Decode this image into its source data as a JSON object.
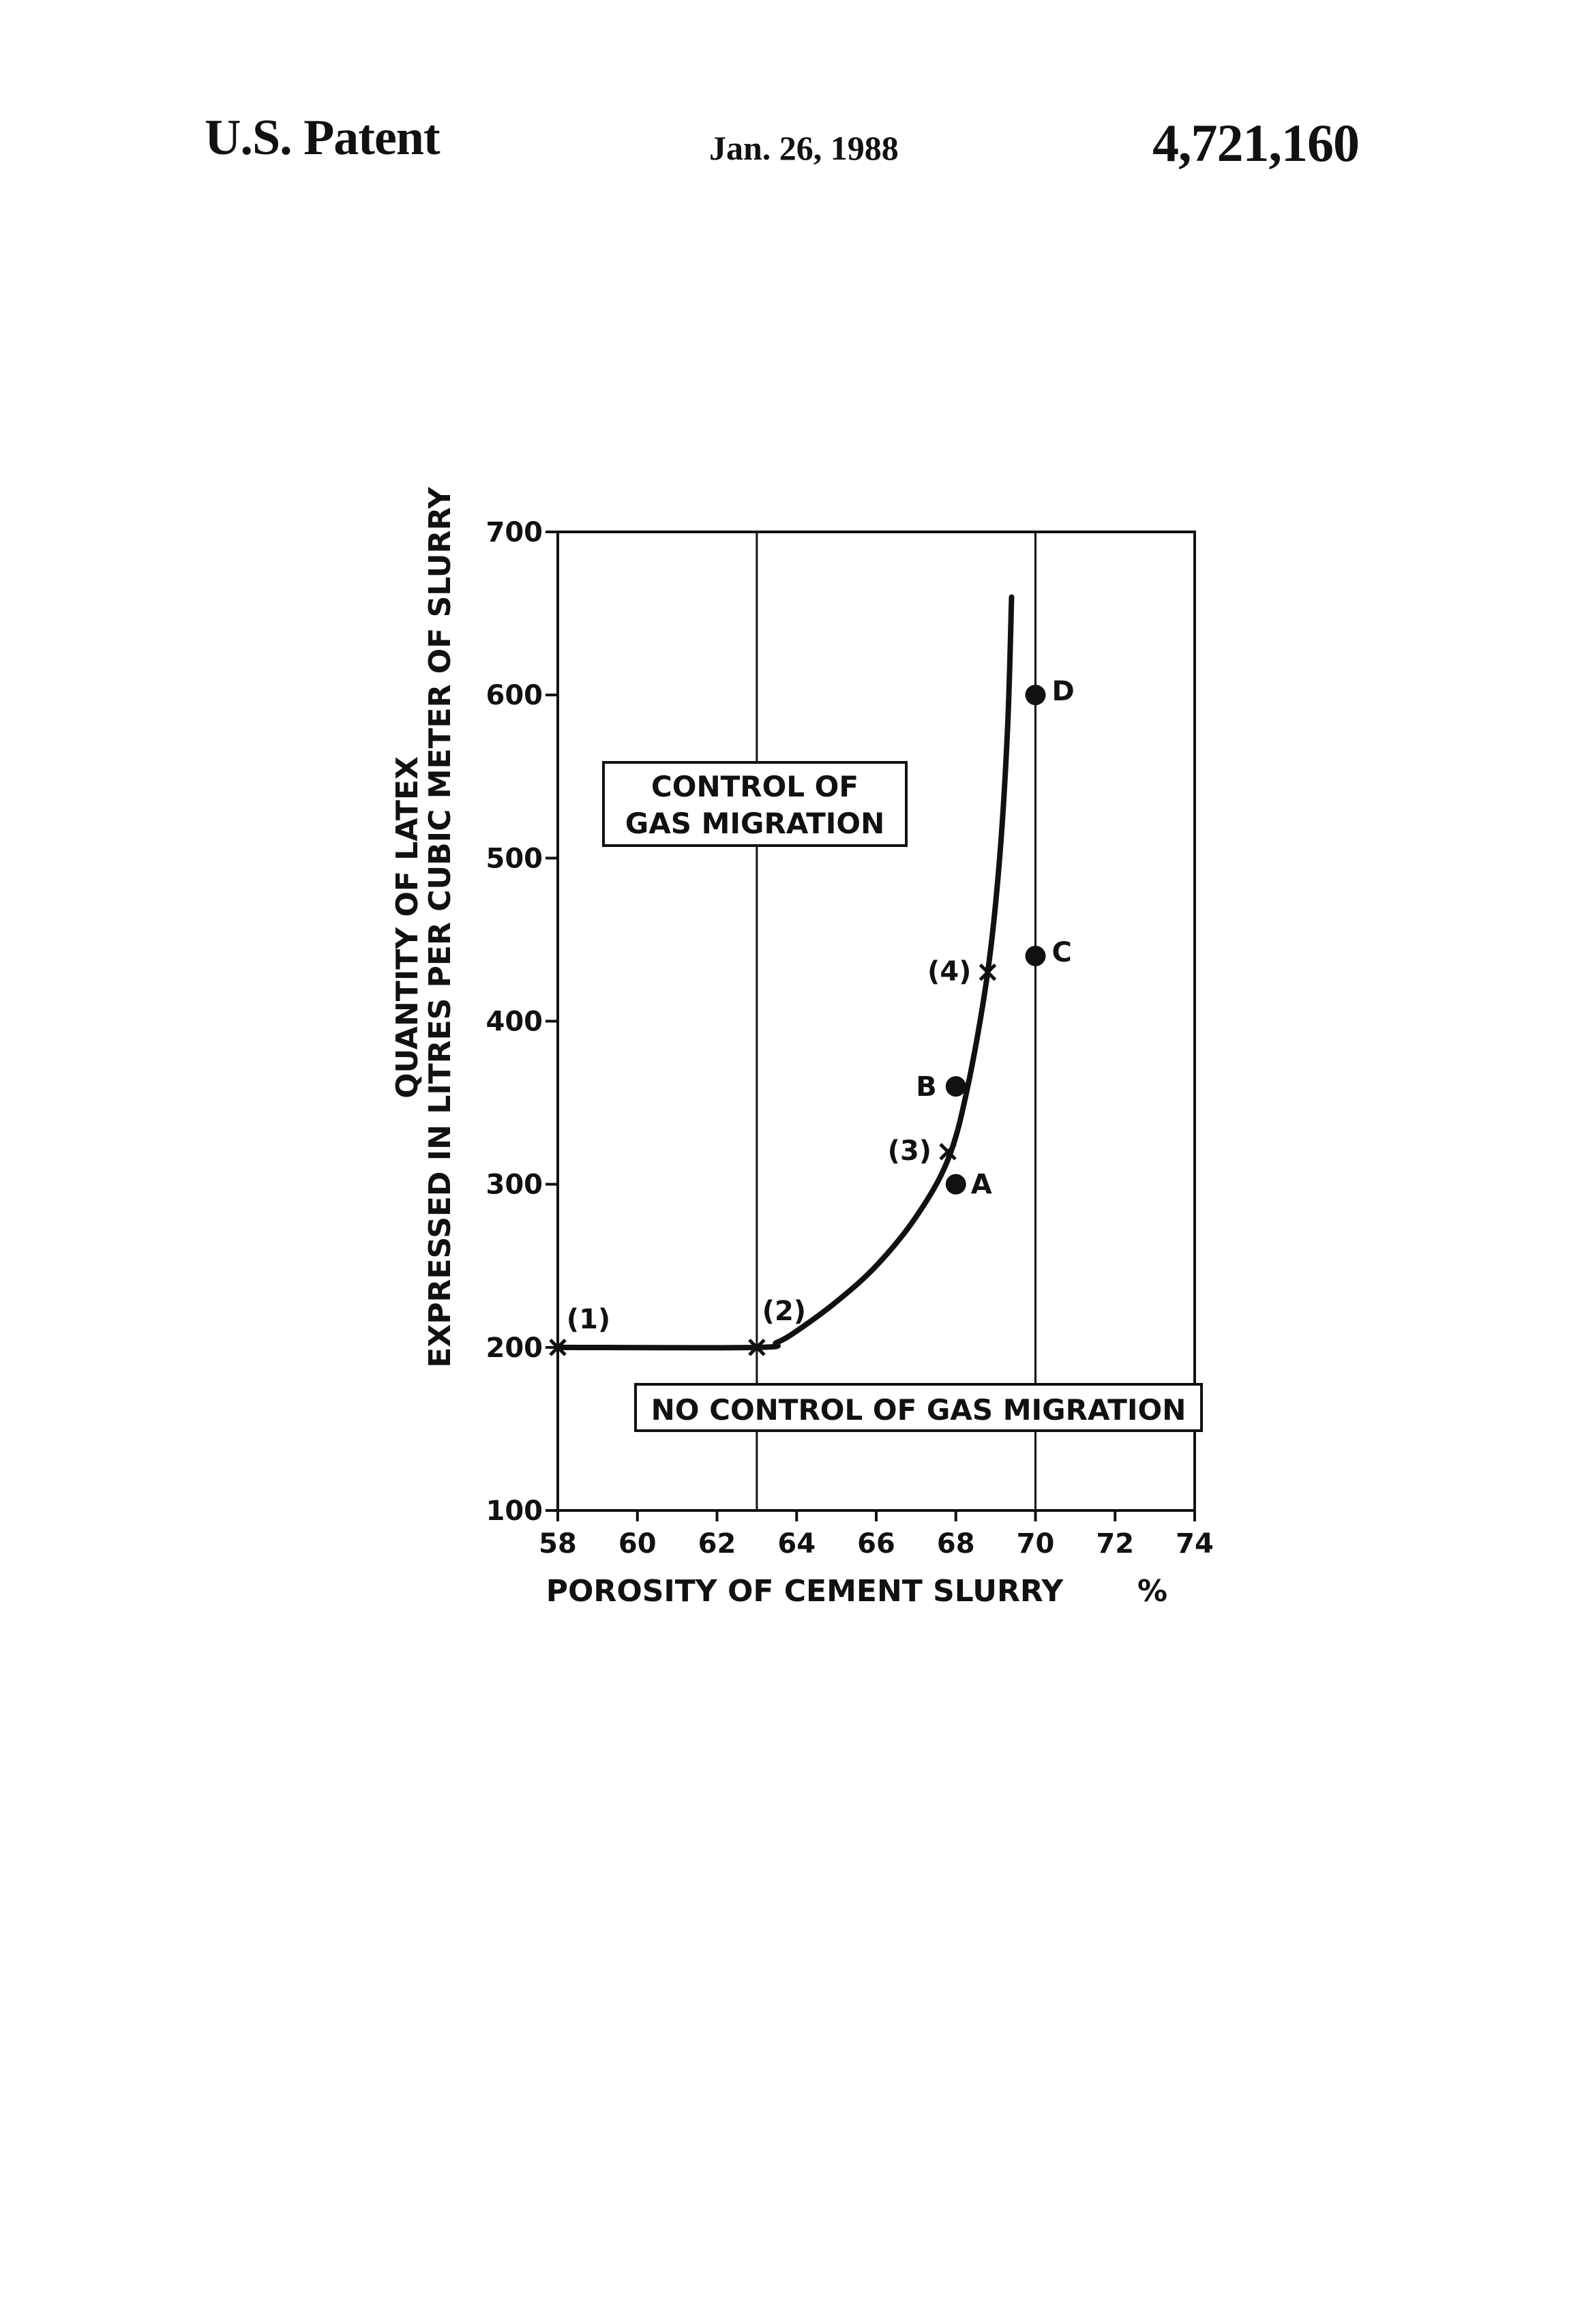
{
  "header": {
    "left": "U.S. Patent",
    "date": "Jan. 26, 1988",
    "number": "4,721,160"
  },
  "chart_data": {
    "type": "line",
    "xlim": [
      58,
      74
    ],
    "ylim": [
      100,
      700
    ],
    "x_ticks": [
      "58",
      "60",
      "62",
      "64",
      "66",
      "68",
      "70",
      "72",
      "74"
    ],
    "y_ticks": [
      "100",
      "200",
      "300",
      "400",
      "500",
      "600",
      "700"
    ],
    "xlabel": "POROSITY OF CEMENT SLURRY",
    "xlabel_unit": "%",
    "ylabel_line1": "QUANTITY OF LATEX",
    "ylabel_line2": "EXPRESSED IN LITRES PER CUBIC METER OF SLURRY",
    "vertical_reference_lines": [
      63,
      70
    ],
    "curve": [
      {
        "x": 58,
        "y": 200
      },
      {
        "x": 63,
        "y": 200
      },
      {
        "x": 63.5,
        "y": 203
      },
      {
        "x": 64,
        "y": 210
      },
      {
        "x": 65,
        "y": 228
      },
      {
        "x": 66,
        "y": 250
      },
      {
        "x": 67,
        "y": 280
      },
      {
        "x": 67.8,
        "y": 315
      },
      {
        "x": 68.3,
        "y": 360
      },
      {
        "x": 68.8,
        "y": 430
      },
      {
        "x": 69.1,
        "y": 500
      },
      {
        "x": 69.3,
        "y": 580
      },
      {
        "x": 69.4,
        "y": 660
      }
    ],
    "x_markers": [
      {
        "label": "(1)",
        "x": 58,
        "y": 200
      },
      {
        "label": "(2)",
        "x": 63,
        "y": 200
      },
      {
        "label": "(3)",
        "x": 67.8,
        "y": 320
      },
      {
        "label": "(4)",
        "x": 68.8,
        "y": 430
      }
    ],
    "dot_points": [
      {
        "label": "A",
        "x": 68,
        "y": 300
      },
      {
        "label": "B",
        "x": 68,
        "y": 360
      },
      {
        "label": "C",
        "x": 70,
        "y": 440
      },
      {
        "label": "D",
        "x": 70,
        "y": 600
      }
    ],
    "region_labels": {
      "upper_line1": "CONTROL OF",
      "upper_line2": "GAS MIGRATION",
      "lower": "NO CONTROL OF GAS MIGRATION"
    },
    "grid": false
  }
}
